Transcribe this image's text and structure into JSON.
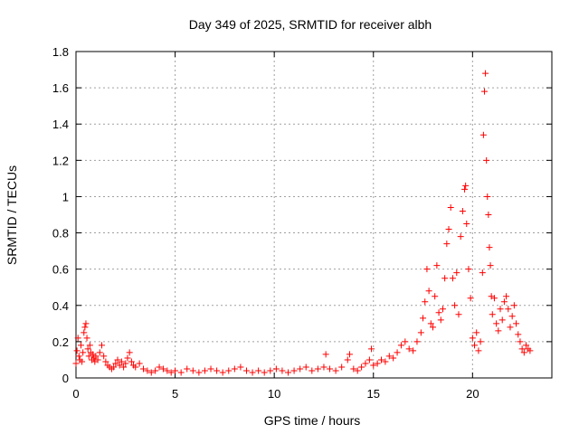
{
  "chart_data": {
    "type": "scatter",
    "title": "Day 349 of 2025, SRMTID for receiver albh",
    "xlabel": "GPS time / hours",
    "ylabel": "SRMTID / TECUs",
    "xlim": [
      0,
      24
    ],
    "ylim": [
      0,
      1.8
    ],
    "x_ticks": [
      0,
      5,
      10,
      15,
      20
    ],
    "y_ticks": [
      0,
      0.2,
      0.4,
      0.6,
      0.8,
      1.0,
      1.2,
      1.4,
      1.6,
      1.8
    ],
    "x_tick_labels": [
      "0",
      "5",
      "10",
      "15",
      "20"
    ],
    "y_tick_labels": [
      "0",
      "0.2",
      "0.4",
      "0.6",
      "0.8",
      "1",
      "1.2",
      "1.4",
      "1.6",
      "1.8"
    ],
    "grid": true,
    "marker": "+",
    "color": "#ff0000",
    "series": [
      {
        "name": "SRMTID",
        "points": [
          [
            0.0,
            0.08
          ],
          [
            0.05,
            0.15
          ],
          [
            0.1,
            0.22
          ],
          [
            0.15,
            0.12
          ],
          [
            0.2,
            0.1
          ],
          [
            0.25,
            0.18
          ],
          [
            0.3,
            0.09
          ],
          [
            0.35,
            0.14
          ],
          [
            0.4,
            0.25
          ],
          [
            0.45,
            0.28
          ],
          [
            0.5,
            0.3
          ],
          [
            0.55,
            0.22
          ],
          [
            0.6,
            0.16
          ],
          [
            0.65,
            0.12
          ],
          [
            0.7,
            0.18
          ],
          [
            0.75,
            0.14
          ],
          [
            0.8,
            0.1
          ],
          [
            0.85,
            0.13
          ],
          [
            0.9,
            0.11
          ],
          [
            0.95,
            0.09
          ],
          [
            1.0,
            0.12
          ],
          [
            1.1,
            0.1
          ],
          [
            1.2,
            0.14
          ],
          [
            1.3,
            0.18
          ],
          [
            1.4,
            0.12
          ],
          [
            1.5,
            0.09
          ],
          [
            1.6,
            0.07
          ],
          [
            1.7,
            0.06
          ],
          [
            1.8,
            0.05
          ],
          [
            1.9,
            0.06
          ],
          [
            2.0,
            0.08
          ],
          [
            2.1,
            0.1
          ],
          [
            2.2,
            0.07
          ],
          [
            2.3,
            0.09
          ],
          [
            2.4,
            0.06
          ],
          [
            2.5,
            0.08
          ],
          [
            2.6,
            0.11
          ],
          [
            2.7,
            0.14
          ],
          [
            2.8,
            0.09
          ],
          [
            2.9,
            0.07
          ],
          [
            3.0,
            0.06
          ],
          [
            3.2,
            0.08
          ],
          [
            3.4,
            0.05
          ],
          [
            3.6,
            0.04
          ],
          [
            3.8,
            0.03
          ],
          [
            4.0,
            0.04
          ],
          [
            4.2,
            0.06
          ],
          [
            4.4,
            0.05
          ],
          [
            4.6,
            0.04
          ],
          [
            4.8,
            0.03
          ],
          [
            5.0,
            0.04
          ],
          [
            5.3,
            0.03
          ],
          [
            5.6,
            0.05
          ],
          [
            5.9,
            0.04
          ],
          [
            6.2,
            0.03
          ],
          [
            6.5,
            0.04
          ],
          [
            6.8,
            0.05
          ],
          [
            7.1,
            0.04
          ],
          [
            7.4,
            0.03
          ],
          [
            7.7,
            0.04
          ],
          [
            8.0,
            0.05
          ],
          [
            8.3,
            0.06
          ],
          [
            8.6,
            0.04
          ],
          [
            8.9,
            0.03
          ],
          [
            9.2,
            0.04
          ],
          [
            9.5,
            0.03
          ],
          [
            9.8,
            0.04
          ],
          [
            10.1,
            0.05
          ],
          [
            10.4,
            0.04
          ],
          [
            10.7,
            0.03
          ],
          [
            11.0,
            0.04
          ],
          [
            11.3,
            0.05
          ],
          [
            11.6,
            0.06
          ],
          [
            11.9,
            0.04
          ],
          [
            12.2,
            0.05
          ],
          [
            12.5,
            0.06
          ],
          [
            12.6,
            0.13
          ],
          [
            12.8,
            0.05
          ],
          [
            13.1,
            0.04
          ],
          [
            13.4,
            0.06
          ],
          [
            13.7,
            0.1
          ],
          [
            13.8,
            0.13
          ],
          [
            14.0,
            0.05
          ],
          [
            14.2,
            0.04
          ],
          [
            14.4,
            0.06
          ],
          [
            14.6,
            0.08
          ],
          [
            14.8,
            0.1
          ],
          [
            14.9,
            0.16
          ],
          [
            15.0,
            0.07
          ],
          [
            15.2,
            0.08
          ],
          [
            15.4,
            0.1
          ],
          [
            15.6,
            0.09
          ],
          [
            15.8,
            0.12
          ],
          [
            16.0,
            0.11
          ],
          [
            16.2,
            0.14
          ],
          [
            16.4,
            0.18
          ],
          [
            16.6,
            0.2
          ],
          [
            16.8,
            0.16
          ],
          [
            17.0,
            0.15
          ],
          [
            17.2,
            0.2
          ],
          [
            17.4,
            0.25
          ],
          [
            17.5,
            0.33
          ],
          [
            17.6,
            0.42
          ],
          [
            17.7,
            0.6
          ],
          [
            17.8,
            0.48
          ],
          [
            17.9,
            0.3
          ],
          [
            18.0,
            0.28
          ],
          [
            18.1,
            0.45
          ],
          [
            18.2,
            0.62
          ],
          [
            18.3,
            0.36
          ],
          [
            18.4,
            0.32
          ],
          [
            18.5,
            0.38
          ],
          [
            18.6,
            0.55
          ],
          [
            18.7,
            0.74
          ],
          [
            18.8,
            0.82
          ],
          [
            18.9,
            0.94
          ],
          [
            19.0,
            0.55
          ],
          [
            19.1,
            0.4
          ],
          [
            19.2,
            0.58
          ],
          [
            19.3,
            0.35
          ],
          [
            19.4,
            0.78
          ],
          [
            19.5,
            0.92
          ],
          [
            19.6,
            1.04
          ],
          [
            19.65,
            1.06
          ],
          [
            19.7,
            0.85
          ],
          [
            19.8,
            0.6
          ],
          [
            19.9,
            0.44
          ],
          [
            20.0,
            0.22
          ],
          [
            20.1,
            0.18
          ],
          [
            20.2,
            0.25
          ],
          [
            20.3,
            0.15
          ],
          [
            20.4,
            0.2
          ],
          [
            20.5,
            0.58
          ],
          [
            20.55,
            1.34
          ],
          [
            20.6,
            1.58
          ],
          [
            20.65,
            1.68
          ],
          [
            20.7,
            1.2
          ],
          [
            20.75,
            1.0
          ],
          [
            20.8,
            0.9
          ],
          [
            20.85,
            0.72
          ],
          [
            20.9,
            0.62
          ],
          [
            20.95,
            0.45
          ],
          [
            21.0,
            0.35
          ],
          [
            21.1,
            0.44
          ],
          [
            21.2,
            0.3
          ],
          [
            21.3,
            0.26
          ],
          [
            21.4,
            0.38
          ],
          [
            21.5,
            0.32
          ],
          [
            21.6,
            0.42
          ],
          [
            21.7,
            0.45
          ],
          [
            21.8,
            0.38
          ],
          [
            21.9,
            0.28
          ],
          [
            22.0,
            0.34
          ],
          [
            22.1,
            0.4
          ],
          [
            22.2,
            0.3
          ],
          [
            22.3,
            0.24
          ],
          [
            22.4,
            0.2
          ],
          [
            22.5,
            0.16
          ],
          [
            22.6,
            0.14
          ],
          [
            22.7,
            0.18
          ],
          [
            22.8,
            0.16
          ],
          [
            22.9,
            0.15
          ]
        ]
      }
    ]
  }
}
